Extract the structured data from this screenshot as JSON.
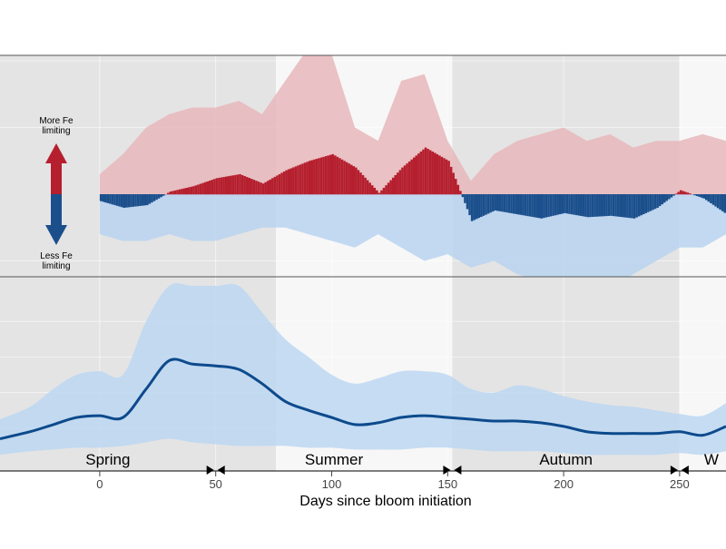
{
  "chart_data": {
    "type": "area",
    "xlabel": "Days since bloom initiation",
    "x_ticks": [
      0,
      50,
      100,
      150,
      200,
      250
    ],
    "xlim": [
      -43,
      270
    ],
    "seasons": [
      {
        "label": "Spring",
        "from": -43,
        "to": 50
      },
      {
        "label": "Summer",
        "from": 50,
        "to": 152
      },
      {
        "label": "Autumn",
        "from": 152,
        "to": 250
      },
      {
        "label": "W",
        "from": 250,
        "to": 270
      }
    ],
    "shading_bounds": [
      -43,
      76,
      152,
      250,
      270
    ],
    "top_panel": {
      "upper_label": "More Fe limiting",
      "lower_label": "Less Fe limiting",
      "ylim": [
        -1,
        1
      ],
      "x": [
        0,
        10,
        20,
        30,
        40,
        50,
        60,
        70,
        80,
        90,
        100,
        110,
        120,
        130,
        140,
        150,
        160,
        170,
        180,
        190,
        200,
        210,
        220,
        230,
        240,
        250,
        260,
        270
      ],
      "median": [
        -0.05,
        -0.1,
        -0.08,
        0.02,
        0.06,
        0.12,
        0.15,
        0.08,
        0.18,
        0.25,
        0.3,
        0.2,
        0.01,
        0.2,
        0.35,
        0.25,
        -0.2,
        -0.12,
        -0.15,
        -0.18,
        -0.14,
        -0.17,
        -0.16,
        -0.18,
        -0.1,
        0.03,
        -0.03,
        -0.15
      ],
      "upper": [
        0.15,
        0.3,
        0.5,
        0.6,
        0.65,
        0.65,
        0.7,
        0.6,
        0.85,
        1.1,
        1.05,
        0.5,
        0.4,
        0.85,
        0.9,
        0.4,
        0.1,
        0.3,
        0.4,
        0.45,
        0.5,
        0.4,
        0.45,
        0.35,
        0.4,
        0.4,
        0.45,
        0.4
      ],
      "lower": [
        -0.3,
        -0.35,
        -0.35,
        -0.3,
        -0.35,
        -0.35,
        -0.3,
        -0.25,
        -0.25,
        -0.3,
        -0.35,
        -0.4,
        -0.3,
        -0.4,
        -0.5,
        -0.45,
        -0.55,
        -0.5,
        -0.6,
        -0.65,
        -0.7,
        -0.65,
        -0.7,
        -0.6,
        -0.5,
        -0.4,
        -0.4,
        -0.3
      ]
    },
    "bottom_panel": {
      "x": [
        -43,
        -30,
        -20,
        -10,
        0,
        10,
        20,
        30,
        40,
        50,
        60,
        70,
        80,
        90,
        100,
        110,
        120,
        130,
        140,
        150,
        160,
        170,
        180,
        190,
        200,
        210,
        220,
        230,
        240,
        250,
        260,
        270
      ],
      "mean": [
        0.14,
        0.18,
        0.22,
        0.26,
        0.27,
        0.26,
        0.42,
        0.58,
        0.56,
        0.55,
        0.53,
        0.45,
        0.35,
        0.3,
        0.26,
        0.22,
        0.23,
        0.26,
        0.27,
        0.26,
        0.25,
        0.24,
        0.24,
        0.23,
        0.21,
        0.18,
        0.17,
        0.17,
        0.17,
        0.18,
        0.16,
        0.21
      ],
      "upper": [
        0.25,
        0.32,
        0.42,
        0.5,
        0.52,
        0.5,
        0.8,
        1.0,
        1.0,
        1.0,
        1.0,
        0.85,
        0.7,
        0.6,
        0.5,
        0.45,
        0.48,
        0.52,
        0.52,
        0.5,
        0.42,
        0.4,
        0.44,
        0.42,
        0.38,
        0.35,
        0.33,
        0.32,
        0.3,
        0.28,
        0.27,
        0.34
      ],
      "lower": [
        0.05,
        0.07,
        0.08,
        0.09,
        0.09,
        0.1,
        0.12,
        0.14,
        0.12,
        0.11,
        0.1,
        0.1,
        0.1,
        0.09,
        0.09,
        0.08,
        0.08,
        0.08,
        0.09,
        0.09,
        0.08,
        0.07,
        0.07,
        0.07,
        0.06,
        0.05,
        0.05,
        0.05,
        0.05,
        0.06,
        0.05,
        0.07
      ]
    },
    "colors": {
      "more_fe": "#b51f2e",
      "more_fe_band": "#e8b7bb",
      "less_fe": "#1b4f8c",
      "less_fe_band": "#b8d4f0",
      "mean_line": "#0d4a8c",
      "mean_band": "#bcd7f2",
      "shade_dark": "#e4e4e4",
      "shade_light": "#f7f7f7"
    },
    "grid": true,
    "legend": "left"
  }
}
